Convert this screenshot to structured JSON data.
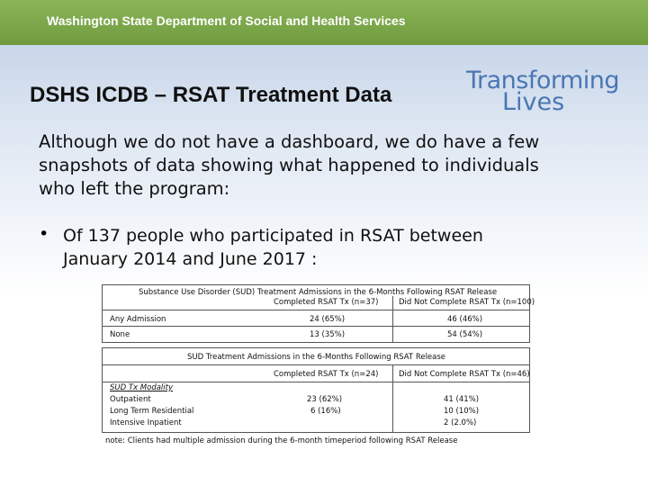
{
  "header": {
    "agency": "Washington State Department of Social and Health Services"
  },
  "title": "DSHS ICDB – RSAT Treatment Data",
  "logo": {
    "line1": "Transforming",
    "line2": "Lives"
  },
  "intro": "Although we do not have a dashboard, we do have a few snapshots of data showing what happened to individuals who left the program:",
  "bullet": {
    "symbol": "•",
    "text": "Of 137 people who participated in RSAT between January 2014 and June 2017 :"
  },
  "table1": {
    "title": "Substance Use Disorder (SUD) Treatment Admissions in the 6-Months Following RSAT Release",
    "col1": "Completed RSAT Tx (n=37)",
    "col2": "Did Not Complete RSAT Tx (n=100)",
    "rows": [
      {
        "label": "Any Admission",
        "v1": "24 (65%)",
        "v2": "46 (46%)"
      },
      {
        "label": "None",
        "v1": "13 (35%)",
        "v2": "54 (54%)"
      }
    ]
  },
  "table2": {
    "title": "SUD Treatment Admissions in the 6-Months Following RSAT Release",
    "col1": "Completed RSAT Tx (n=24)",
    "col2": "Did Not Complete RSAT Tx (n=46)",
    "section": "SUD Tx Modality",
    "rows": [
      {
        "label": "Outpatient",
        "v1": "23 (62%)",
        "v2": "41 (41%)"
      },
      {
        "label": "Long Term Residential",
        "v1": "6 (16%)",
        "v2": "10 (10%)"
      },
      {
        "label": "Intensive Inpatient",
        "v1": "",
        "v2": "2 (2.0%)"
      }
    ]
  },
  "note": "note: Clients had multiple admission during the 6-month timeperiod following RSAT Release",
  "colors": {
    "header_green": "#7aa64a",
    "logo_blue": "#4a76b4"
  }
}
